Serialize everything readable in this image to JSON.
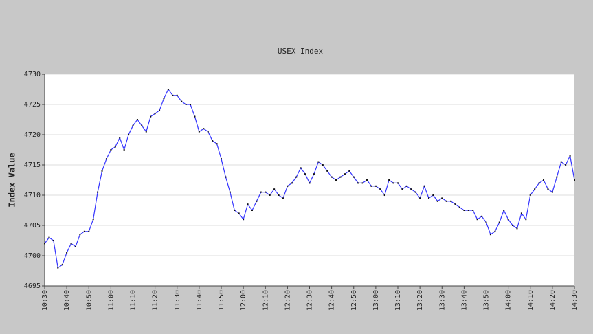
{
  "chart_data": {
    "type": "line",
    "title": "USEX Index",
    "y_label": "Index Value",
    "x": [
      "10:30",
      "10:32",
      "10:34",
      "10:36",
      "10:38",
      "10:40",
      "10:42",
      "10:44",
      "10:46",
      "10:48",
      "10:50",
      "10:52",
      "10:54",
      "10:56",
      "10:58",
      "11:00",
      "11:02",
      "11:04",
      "11:06",
      "11:08",
      "11:10",
      "11:12",
      "11:14",
      "11:16",
      "11:18",
      "11:20",
      "11:22",
      "11:24",
      "11:26",
      "11:28",
      "11:30",
      "11:32",
      "11:34",
      "11:36",
      "11:38",
      "11:40",
      "11:42",
      "11:44",
      "11:46",
      "11:48",
      "11:50",
      "11:52",
      "11:54",
      "11:56",
      "11:58",
      "12:00",
      "12:02",
      "12:04",
      "12:06",
      "12:08",
      "12:10",
      "12:12",
      "12:14",
      "12:16",
      "12:18",
      "12:20",
      "12:22",
      "12:24",
      "12:26",
      "12:28",
      "12:30",
      "12:32",
      "12:34",
      "12:36",
      "12:38",
      "12:40",
      "12:42",
      "12:44",
      "12:46",
      "12:48",
      "12:50",
      "12:52",
      "12:54",
      "12:56",
      "12:58",
      "13:00",
      "13:02",
      "13:04",
      "13:06",
      "13:08",
      "13:10",
      "13:12",
      "13:14",
      "13:16",
      "13:18",
      "13:20",
      "13:22",
      "13:24",
      "13:26",
      "13:28",
      "13:30",
      "13:32",
      "13:34",
      "13:36",
      "13:38",
      "13:40",
      "13:42",
      "13:44",
      "13:46",
      "13:48",
      "13:50",
      "13:52",
      "13:54",
      "13:56",
      "13:58",
      "14:00",
      "14:02",
      "14:04",
      "14:06",
      "14:08",
      "14:10",
      "14:12",
      "14:14",
      "14:16",
      "14:18",
      "14:20",
      "14:22",
      "14:24",
      "14:26",
      "14:28",
      "14:30"
    ],
    "series": [
      {
        "name": "USEX Index",
        "color": "#3333ff",
        "values": [
          4702,
          4703,
          4702.5,
          4698,
          4698.5,
          4700.5,
          4702,
          4701.5,
          4703.5,
          4704,
          4704,
          4706,
          4710.5,
          4714,
          4716,
          4717.5,
          4718,
          4719.5,
          4717.5,
          4720,
          4721.5,
          4722.5,
          4721.5,
          4720.5,
          4723,
          4723.5,
          4724,
          4726,
          4727.5,
          4726.5,
          4726.5,
          4725.5,
          4725,
          4725,
          4723,
          4720.5,
          4721,
          4720.5,
          4719,
          4718.5,
          4716,
          4713,
          4710.5,
          4707.5,
          4707,
          4706,
          4708.5,
          4707.5,
          4709,
          4710.5,
          4710.5,
          4710,
          4711,
          4710,
          4709.5,
          4711.5,
          4712,
          4713,
          4714.5,
          4713.5,
          4712,
          4713.5,
          4715.5,
          4715,
          4714,
          4713,
          4712.5,
          4713,
          4713.5,
          4714,
          4713,
          4712,
          4712,
          4712.5,
          4711.5,
          4711.5,
          4711,
          4710,
          4712.5,
          4712,
          4712,
          4711,
          4711.5,
          4711,
          4710.5,
          4709.5,
          4711.5,
          4709.5,
          4710,
          4709,
          4709.5,
          4709,
          4709,
          4708.5,
          4708,
          4707.5,
          4707.5,
          4707.5,
          4706,
          4706.5,
          4705.5,
          4703.5,
          4704,
          4705.5,
          4707.5,
          4706,
          4705,
          4704.5,
          4707,
          4706,
          4710,
          4711,
          4712,
          4712.5,
          4711,
          4710.5,
          4713,
          4715.5,
          4715,
          4716.5,
          4712.5
        ]
      }
    ],
    "xticks": [
      "10:30",
      "10:40",
      "10:50",
      "11:00",
      "11:10",
      "11:20",
      "11:30",
      "11:40",
      "11:50",
      "12:00",
      "12:10",
      "12:20",
      "12:30",
      "12:40",
      "12:50",
      "13:00",
      "13:10",
      "13:20",
      "13:30",
      "13:40",
      "13:50",
      "14:00",
      "14:10",
      "14:20",
      "14:30"
    ],
    "ylim": [
      4695,
      4730
    ],
    "yticks": [
      4695,
      4700,
      4705,
      4710,
      4715,
      4720,
      4725,
      4730
    ],
    "grid": true
  }
}
